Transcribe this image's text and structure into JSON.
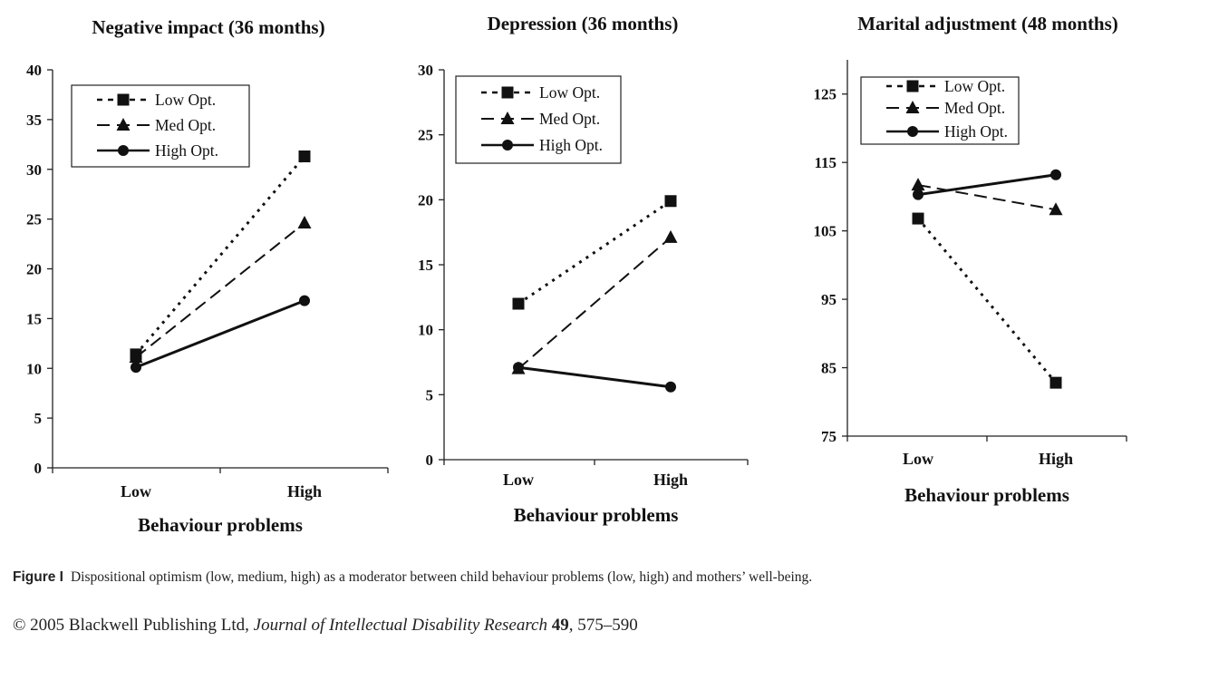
{
  "chart_data": [
    {
      "type": "line",
      "title": "Negative impact (36 months)",
      "xlabel": "Behaviour problems",
      "ylabel": "",
      "categories": [
        "Low",
        "High"
      ],
      "ylim": [
        0,
        40
      ],
      "yticks": [
        "0",
        "5",
        "10",
        "15",
        "20",
        "25",
        "30",
        "35",
        "40"
      ],
      "legend": "top-left",
      "series": [
        {
          "name": "Low Opt.",
          "values": [
            11.4,
            31.3
          ],
          "style": "dotted",
          "marker": "square"
        },
        {
          "name": "Med Opt.",
          "values": [
            11.1,
            24.6
          ],
          "style": "dashed",
          "marker": "triangle"
        },
        {
          "name": "High Opt.",
          "values": [
            10.1,
            16.8
          ],
          "style": "solid",
          "marker": "circle"
        }
      ]
    },
    {
      "type": "line",
      "title": "Depression (36 months)",
      "xlabel": "Behaviour problems",
      "ylabel": "",
      "categories": [
        "Low",
        "High"
      ],
      "ylim": [
        0,
        30
      ],
      "yticks": [
        "0",
        "5",
        "10",
        "15",
        "20",
        "25",
        "30"
      ],
      "legend": "top-left",
      "series": [
        {
          "name": "Low Opt.",
          "values": [
            12.0,
            19.9
          ],
          "style": "dotted",
          "marker": "square"
        },
        {
          "name": "Med Opt.",
          "values": [
            7.0,
            17.1
          ],
          "style": "dashed",
          "marker": "triangle"
        },
        {
          "name": "High Opt.",
          "values": [
            7.1,
            5.6
          ],
          "style": "solid",
          "marker": "circle"
        }
      ]
    },
    {
      "type": "line",
      "title": "Marital adjustment (48 months)",
      "xlabel": "Behaviour problems",
      "ylabel": "",
      "categories": [
        "Low",
        "High"
      ],
      "ylim": [
        75,
        130
      ],
      "yticks": [
        "75",
        "85",
        "95",
        "105",
        "115",
        "125"
      ],
      "legend": "top-left",
      "series": [
        {
          "name": "Low Opt.",
          "values": [
            106.8,
            82.8
          ],
          "style": "dotted",
          "marker": "square"
        },
        {
          "name": "Med Opt.",
          "values": [
            111.7,
            108.1
          ],
          "style": "dashed",
          "marker": "triangle"
        },
        {
          "name": "High Opt.",
          "values": [
            110.3,
            113.2
          ],
          "style": "solid",
          "marker": "circle"
        }
      ]
    }
  ],
  "caption": {
    "label": "Figure I",
    "text": "Dispositional optimism (low, medium, high) as a moderator between child behaviour problems (low, high) and mothers’ well-being."
  },
  "copyright": {
    "prefix": "© 2005 Blackwell Publishing Ltd, ",
    "journal": "Journal of Intellectual Disability Research",
    "volume": "49",
    "pages": ", 575–590"
  }
}
